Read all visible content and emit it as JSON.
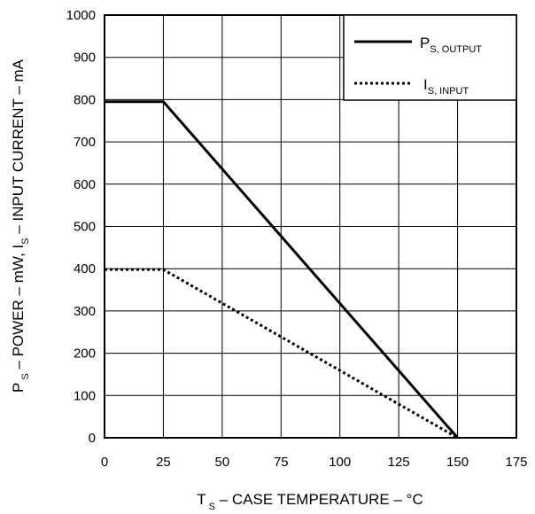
{
  "chart_data": {
    "type": "line",
    "x_ticks": [
      "0",
      "25",
      "50",
      "75",
      "100",
      "125",
      "150",
      "175"
    ],
    "y_ticks": [
      "0",
      "100",
      "200",
      "300",
      "400",
      "500",
      "600",
      "700",
      "800",
      "900",
      "1000"
    ],
    "xlim": [
      0,
      175
    ],
    "ylim": [
      0,
      1000
    ],
    "grid": true,
    "legend_position": "top-right",
    "xlabel": {
      "main": "T",
      "sub": "S",
      "rest": " – CASE TEMPERATURE – °C"
    },
    "ylabel": {
      "p": "P",
      "p_sub": "S",
      "mid": " – POWER – mW, I",
      "i_sub": "S",
      "rest": " – INPUT CURRENT – mA"
    },
    "series": [
      {
        "name_main": "P",
        "name_sub": "S, OUTPUT",
        "style": "solid",
        "x": [
          0,
          25,
          150
        ],
        "y": [
          795,
          795,
          0
        ]
      },
      {
        "name_main": "I",
        "name_sub": "S, INPUT",
        "style": "dotted",
        "x": [
          0,
          25,
          150
        ],
        "y": [
          398,
          398,
          0
        ]
      }
    ]
  }
}
